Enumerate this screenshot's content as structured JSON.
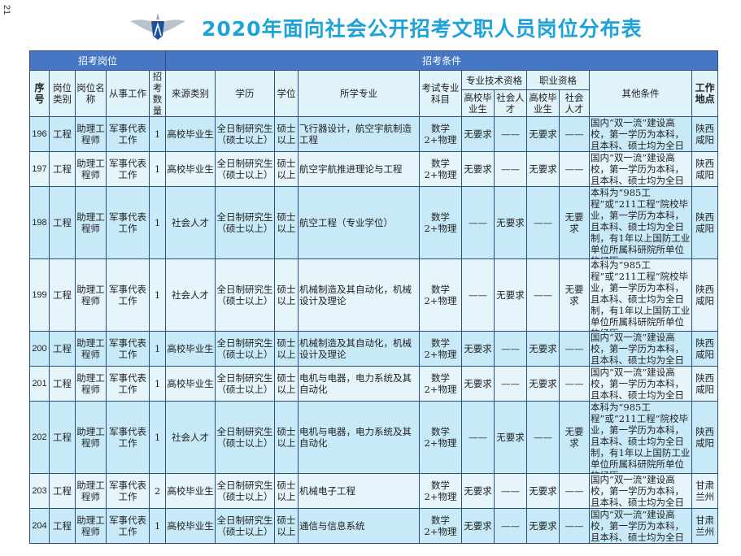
{
  "page_number": "21",
  "title": "2020年面向社会公开招考文职人员岗位分布表",
  "colors": {
    "title": "#1ea3d9",
    "header_band": "#4676c4",
    "row_dark": "#c8eaf8",
    "row_light": "#e6f5fb"
  },
  "logo": {
    "icon": "air-force-wings-emblem"
  },
  "table": {
    "group_headers": [
      "招考岗位",
      "招考条件"
    ],
    "headers": {
      "seq": "序号",
      "post_type": "岗位类别",
      "post_name": "岗位名称",
      "work": "从事工作",
      "count": "招考数量",
      "source": "来源类别",
      "education": "学历",
      "degree": "学位",
      "major": "所学专业",
      "exam": "考试专业科目",
      "tech_qual": "专业技术资格",
      "job_qual": "职业资格",
      "grad": "高校毕业生",
      "social": "社会人才",
      "grad2": "高校毕业生",
      "social2": "社会人才",
      "other": "其他条件",
      "location": "工作地点"
    },
    "rows": [
      {
        "seq": "196",
        "type": "工程",
        "name": "助理工程师",
        "work": "军事代表工作",
        "count": "1",
        "source": "高校毕业生",
        "edu": "全日制研究生（硕士以上）",
        "degree": "硕士以上",
        "major": "飞行器设计，航空宇航制造工程",
        "exam": "数学2+物理",
        "t1": "无要求",
        "t2": "——",
        "j1": "无要求",
        "j2": "——",
        "other": "国内“双一流”建设高校，第一学历为本科，且本科、硕士均为全日制",
        "loc": "陕西咸阳"
      },
      {
        "seq": "197",
        "type": "工程",
        "name": "助理工程师",
        "work": "军事代表工作",
        "count": "1",
        "source": "高校毕业生",
        "edu": "全日制研究生（硕士以上）",
        "degree": "硕士以上",
        "major": "航空宇航推进理论与工程",
        "exam": "数学2+物理",
        "t1": "无要求",
        "t2": "——",
        "j1": "无要求",
        "j2": "——",
        "other": "国内“双一流”建设高校，第一学历为本科，且本科、硕士均为全日制",
        "loc": "陕西咸阳"
      },
      {
        "seq": "198",
        "type": "工程",
        "name": "助理工程师",
        "work": "军事代表工作",
        "count": "1",
        "source": "社会人才",
        "edu": "全日制研究生（硕士以上）",
        "degree": "硕士以上",
        "major": "航空工程（专业学位）",
        "exam": "数学2+物理",
        "t1": "——",
        "t2": "无要求",
        "j1": "——",
        "j2": "无要求",
        "other": "本科为“985工程”或“211工程”院校毕业，第一学历为本科，且本科、硕士均为全日制，有1年以上国防工业单位所属科研院所单位的经历",
        "loc": "陕西咸阳"
      },
      {
        "seq": "199",
        "type": "工程",
        "name": "助理工程师",
        "work": "军事代表工作",
        "count": "1",
        "source": "社会人才",
        "edu": "全日制研究生（硕士以上）",
        "degree": "硕士以上",
        "major": "机械制造及其自动化，机械设计及理论",
        "exam": "数学2+物理",
        "t1": "——",
        "t2": "无要求",
        "j1": "——",
        "j2": "无要求",
        "other": "本科为“985工程”或“211工程”院校毕业，第一学历为本科，且本科、硕士均为全日制，有1年以上国防工业单位所属科研院所单位的经历",
        "loc": "陕西咸阳"
      },
      {
        "seq": "200",
        "type": "工程",
        "name": "助理工程师",
        "work": "军事代表工作",
        "count": "1",
        "source": "高校毕业生",
        "edu": "全日制研究生（硕士以上）",
        "degree": "硕士以上",
        "major": "机械制造及其自动化，机械设计及理论",
        "exam": "数学2+物理",
        "t1": "无要求",
        "t2": "——",
        "j1": "无要求",
        "j2": "——",
        "other": "国内“双一流”建设高校，第一学历为本科，且本科、硕士均为全日制",
        "loc": "陕西咸阳"
      },
      {
        "seq": "201",
        "type": "工程",
        "name": "助理工程师",
        "work": "军事代表工作",
        "count": "1",
        "source": "高校毕业生",
        "edu": "全日制研究生（硕士以上）",
        "degree": "硕士以上",
        "major": "电机与电器，电力系统及其自动化",
        "exam": "数学2+物理",
        "t1": "无要求",
        "t2": "——",
        "j1": "无要求",
        "j2": "——",
        "other": "国内“双一流”建设高校，第一学历为本科，且本科、硕士均为全日制",
        "loc": "陕西咸阳"
      },
      {
        "seq": "202",
        "type": "工程",
        "name": "助理工程师",
        "work": "军事代表工作",
        "count": "1",
        "source": "社会人才",
        "edu": "全日制研究生（硕士以上）",
        "degree": "硕士以上",
        "major": "电机与电器，电力系统及其自动化",
        "exam": "数学2+物理",
        "t1": "——",
        "t2": "无要求",
        "j1": "——",
        "j2": "无要求",
        "other": "本科为“985工程”或“211工程”院校毕业，第一学历为本科，且本科、硕士均为全日制，有1年以上国防工业单位所属科研院所单位的经历",
        "loc": "陕西咸阳"
      },
      {
        "seq": "203",
        "type": "工程",
        "name": "助理工程师",
        "work": "军事代表工作",
        "count": "2",
        "source": "高校毕业生",
        "edu": "全日制研究生（硕士以上）",
        "degree": "硕士以上",
        "major": "机械电子工程",
        "exam": "数学2+物理",
        "t1": "无要求",
        "t2": "——",
        "j1": "无要求",
        "j2": "——",
        "other": "国内“双一流”建设高校，第一学历为本科，且本科、硕士均为全日制",
        "loc": "甘肃兰州"
      },
      {
        "seq": "204",
        "type": "工程",
        "name": "助理工程师",
        "work": "军事代表工作",
        "count": "1",
        "source": "高校毕业生",
        "edu": "全日制研究生（硕士以上）",
        "degree": "硕士以上",
        "major": "通信与信息系统",
        "exam": "数学2+物理",
        "t1": "无要求",
        "t2": "——",
        "j1": "无要求",
        "j2": "——",
        "other": "国内“双一流”建设高校，第一学历为本科，且本科、硕士均为全日制",
        "loc": "甘肃兰州"
      }
    ]
  }
}
